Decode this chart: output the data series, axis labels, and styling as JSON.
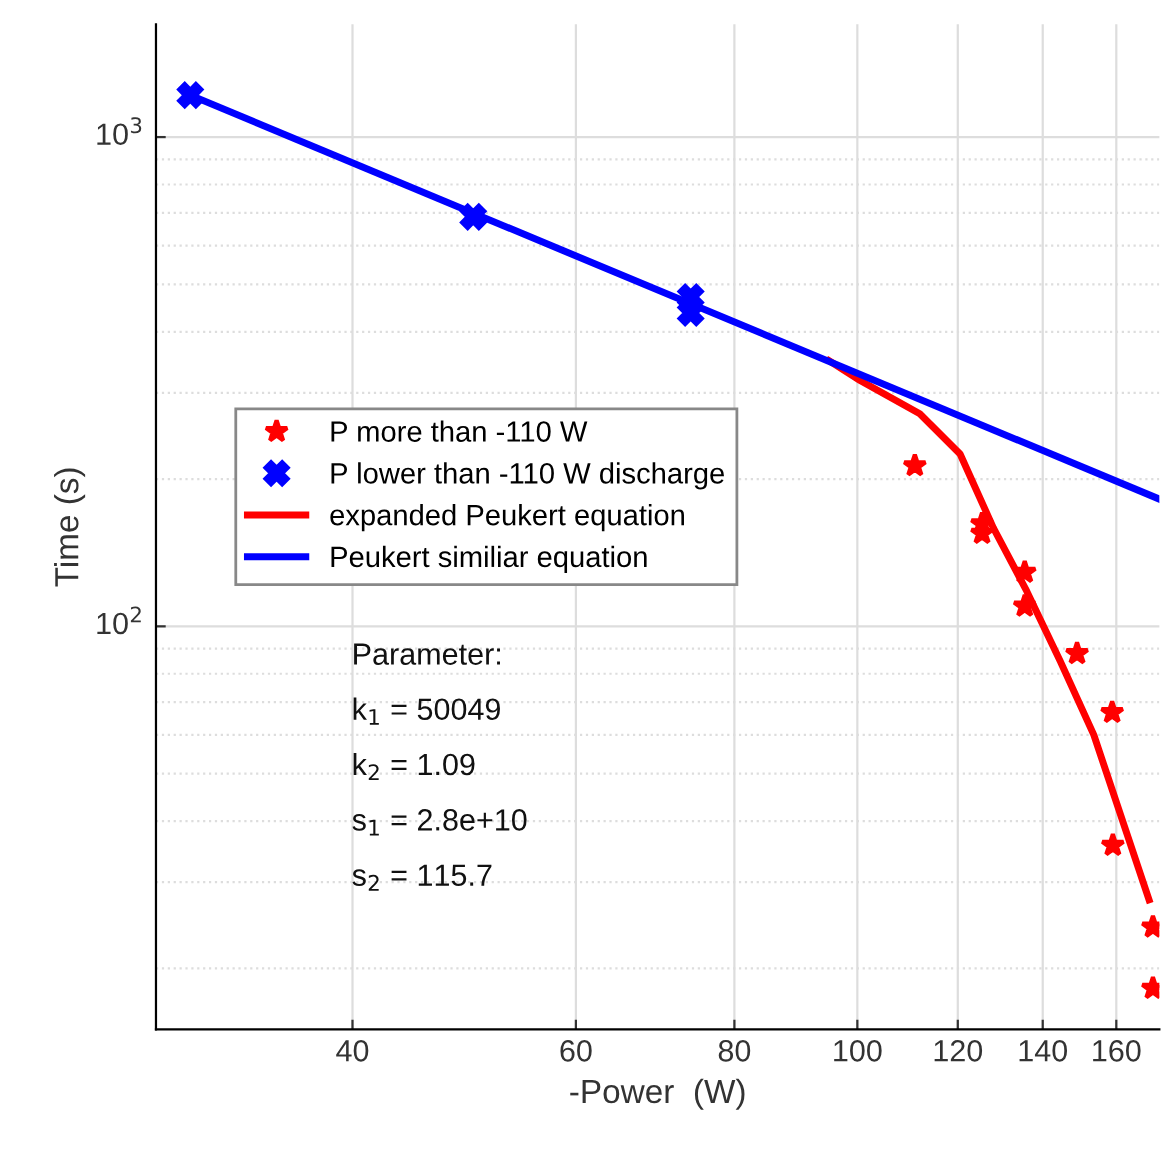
{
  "chart_data": {
    "type": "scatter",
    "xlabel": "-Power  (W)",
    "ylabel": "Time (s)",
    "log": "xy",
    "xlim": [
      28,
      173
    ],
    "xticks": [
      40,
      60,
      80,
      100,
      120,
      140,
      160
    ],
    "ylim": [
      15,
      1700
    ],
    "yticks": [
      {
        "value": 100,
        "label": "10$^{2}$"
      },
      {
        "value": 1000,
        "label": "10$^{3}$"
      }
    ],
    "grid": true,
    "legend": "center left",
    "series": [
      {
        "name": "P more than -110 W",
        "marker": "star",
        "color": "#ff0000",
        "x": [
          111,
          125.4,
          125.4,
          135.5,
          135.5,
          149,
          158.8,
          159,
          171,
          171
        ],
        "values": [
          213,
          162,
          155,
          129,
          110,
          88,
          66.7,
          35.7,
          24.3,
          18.2
        ]
      },
      {
        "name": "P lower than -110 W discharge",
        "marker": "cross",
        "color": "#0000ff",
        "x": [
          29.8,
          49.8,
          73.9,
          73.9
        ],
        "values": [
          1218,
          687,
          471,
          437
        ]
      },
      {
        "name": "expanded Peukert equation",
        "type": "line",
        "marker": "none",
        "color": "#ff0000",
        "x": [
          95,
          100.5,
          112,
          120.5,
          128,
          136,
          144.5,
          153.6,
          169.8
        ],
        "values": [
          349,
          318,
          272,
          225,
          159,
          118,
          85,
          60,
          27.6
        ]
      },
      {
        "name": "Peukert similiar equation",
        "type": "line",
        "marker": "none",
        "color": "#0000ff",
        "x": [
          29.8,
          173
        ],
        "values": [
          1218,
          182
        ]
      }
    ],
    "annotations": [
      "Parameter:",
      "k$_{1}$ = 50049",
      "k$_{2}$ = 1.09",
      "s$_{1}$ = 2.8e+10",
      "s$_{2}$ = 115.7"
    ]
  }
}
